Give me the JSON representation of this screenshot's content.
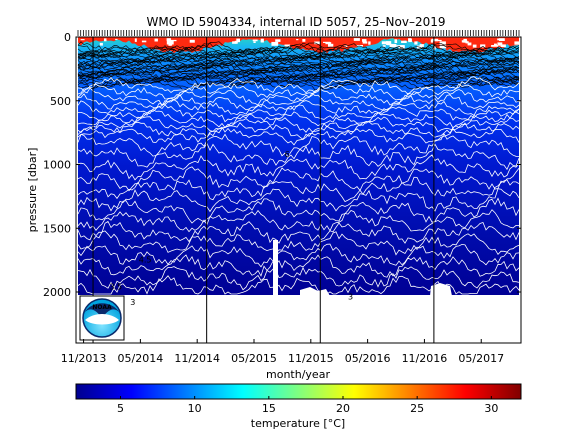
{
  "chart_data": {
    "type": "heatmap",
    "title": "WMO ID 5904334, internal ID 5057, 25–Nov–2019",
    "xlabel": "month/year",
    "ylabel": "pressure [dbar]",
    "colorbar_label_prefix": "temperature [",
    "colorbar_label_unit": "°C",
    "colorbar_label_suffix": "]",
    "x_ticks": [
      "11/2013",
      "05/2014",
      "11/2014",
      "05/2015",
      "11/2015",
      "05/2016",
      "11/2016",
      "05/2017"
    ],
    "x_tick_months": [
      0,
      6,
      12,
      18,
      24,
      30,
      36,
      42
    ],
    "xlim_months": [
      -0.8,
      46.2
    ],
    "ylim": [
      2400,
      0
    ],
    "y_ticks": [
      0,
      500,
      1000,
      1500,
      2000
    ],
    "colorbar_ticks": [
      5,
      10,
      15,
      20,
      25,
      30
    ],
    "colorbar_range": [
      2,
      32
    ],
    "max_profile_pressure": 2000,
    "year_divider_months": [
      1,
      13,
      25,
      37
    ],
    "contour_labels": [
      {
        "text": "6",
        "month": 21.5,
        "pressure": 940
      },
      {
        "text": "4.5",
        "month": 6.5,
        "pressure": 1770
      },
      {
        "text": "3.5",
        "month": 3.4,
        "pressure": 1980
      },
      {
        "text": "3",
        "month": 5.2,
        "pressure": 2100
      },
      {
        "text": "3",
        "month": 28.2,
        "pressure": 2060
      }
    ],
    "logo_text": "NOAA"
  }
}
